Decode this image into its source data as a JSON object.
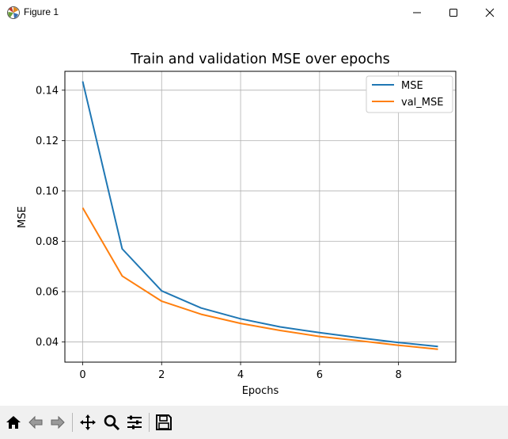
{
  "window": {
    "title": "Figure 1",
    "icons": [
      "matplotlib-app-icon",
      "minimize-icon",
      "maximize-icon",
      "close-icon"
    ]
  },
  "toolbar": {
    "buttons": [
      "home-icon",
      "back-arrow-icon",
      "forward-arrow-icon",
      "pan-icon",
      "zoom-icon",
      "configure-subplots-icon",
      "save-icon"
    ]
  },
  "chart_data": {
    "type": "line",
    "title": "Train and validation MSE over epochs",
    "xlabel": "Epochs",
    "ylabel": "MSE",
    "xlim": [
      -0.45,
      9.45
    ],
    "ylim": [
      0.032,
      0.1475
    ],
    "xticks": [
      0,
      2,
      4,
      6,
      8
    ],
    "xtick_labels": [
      "0",
      "2",
      "4",
      "6",
      "8"
    ],
    "yticks": [
      0.04,
      0.06,
      0.08,
      0.1,
      0.12,
      0.14
    ],
    "ytick_labels": [
      "0.04",
      "0.06",
      "0.08",
      "0.10",
      "0.12",
      "0.14"
    ],
    "grid": true,
    "legend_position": "top-right",
    "x": [
      0,
      1,
      2,
      3,
      4,
      5,
      6,
      7,
      8,
      9
    ],
    "series": [
      {
        "name": "MSE",
        "color": "#1f77b4",
        "values": [
          0.1435,
          0.077,
          0.0603,
          0.0535,
          0.0492,
          0.046,
          0.0437,
          0.0417,
          0.0398,
          0.0382
        ]
      },
      {
        "name": "val_MSE",
        "color": "#ff7f0e",
        "values": [
          0.0933,
          0.0662,
          0.0562,
          0.051,
          0.0474,
          0.0446,
          0.0422,
          0.0405,
          0.0387,
          0.0371
        ]
      }
    ]
  }
}
